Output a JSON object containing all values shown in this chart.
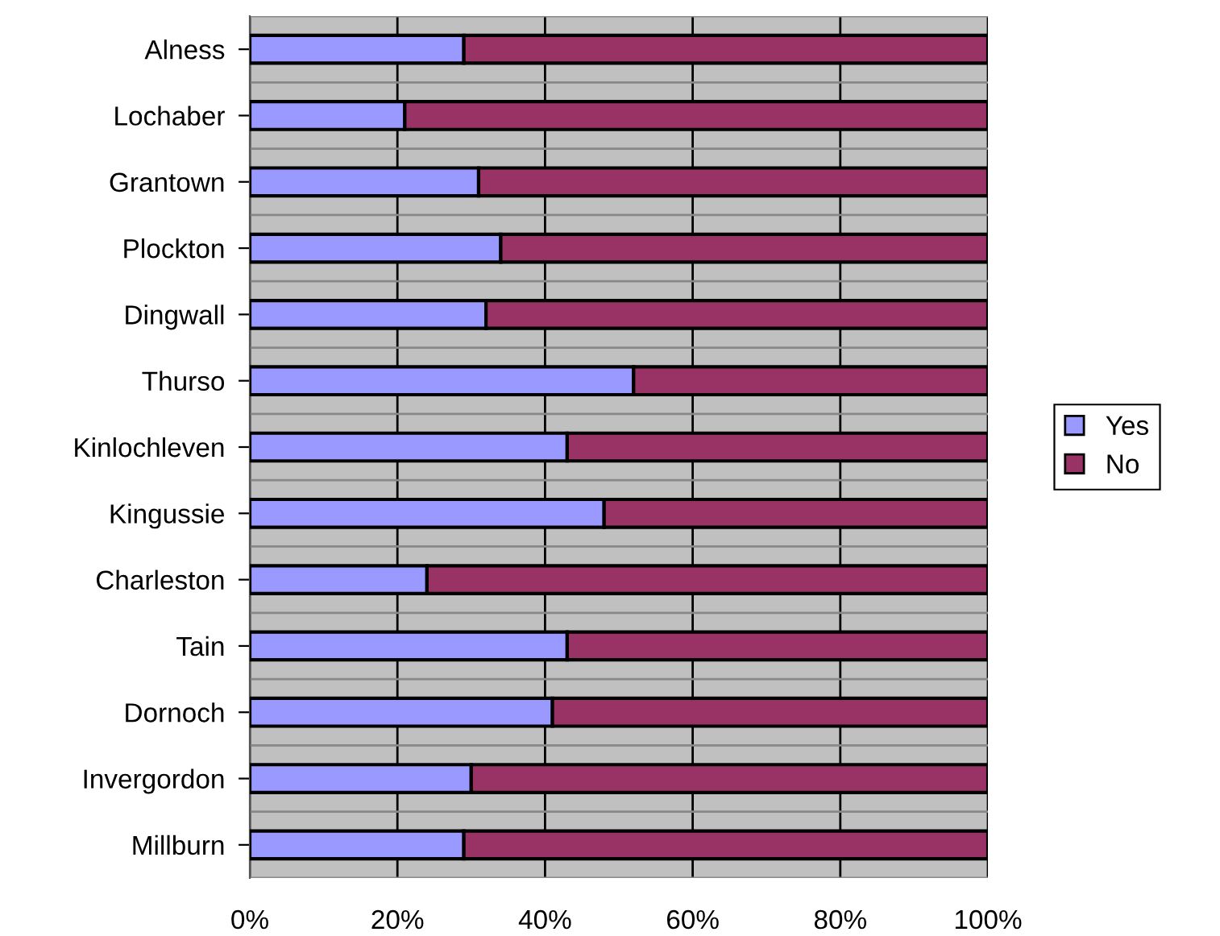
{
  "chart_data": {
    "type": "bar",
    "orientation": "horizontal",
    "stacked": true,
    "categories": [
      "Alness",
      "Lochaber",
      "Grantown",
      "Plockton",
      "Dingwall",
      "Thurso",
      "Kinlochleven",
      "Kingussie",
      "Charleston",
      "Tain",
      "Dornoch",
      "Invergordon",
      "Millburn"
    ],
    "series": [
      {
        "name": "Yes",
        "color": "#9999ff",
        "values": [
          29,
          21,
          31,
          34,
          32,
          52,
          43,
          48,
          24,
          43,
          41,
          30,
          29
        ]
      },
      {
        "name": "No",
        "color": "#993366",
        "values": [
          71,
          79,
          69,
          66,
          68,
          48,
          57,
          52,
          76,
          57,
          59,
          70,
          71
        ]
      }
    ],
    "xlim": [
      0,
      100
    ],
    "xticks": [
      {
        "value": 0,
        "label": "0%"
      },
      {
        "value": 20,
        "label": "20%"
      },
      {
        "value": 40,
        "label": "40%"
      },
      {
        "value": 60,
        "label": "60%"
      },
      {
        "value": 80,
        "label": "80%"
      },
      {
        "value": 100,
        "label": "100%"
      }
    ],
    "grid": true,
    "legend": "right"
  }
}
